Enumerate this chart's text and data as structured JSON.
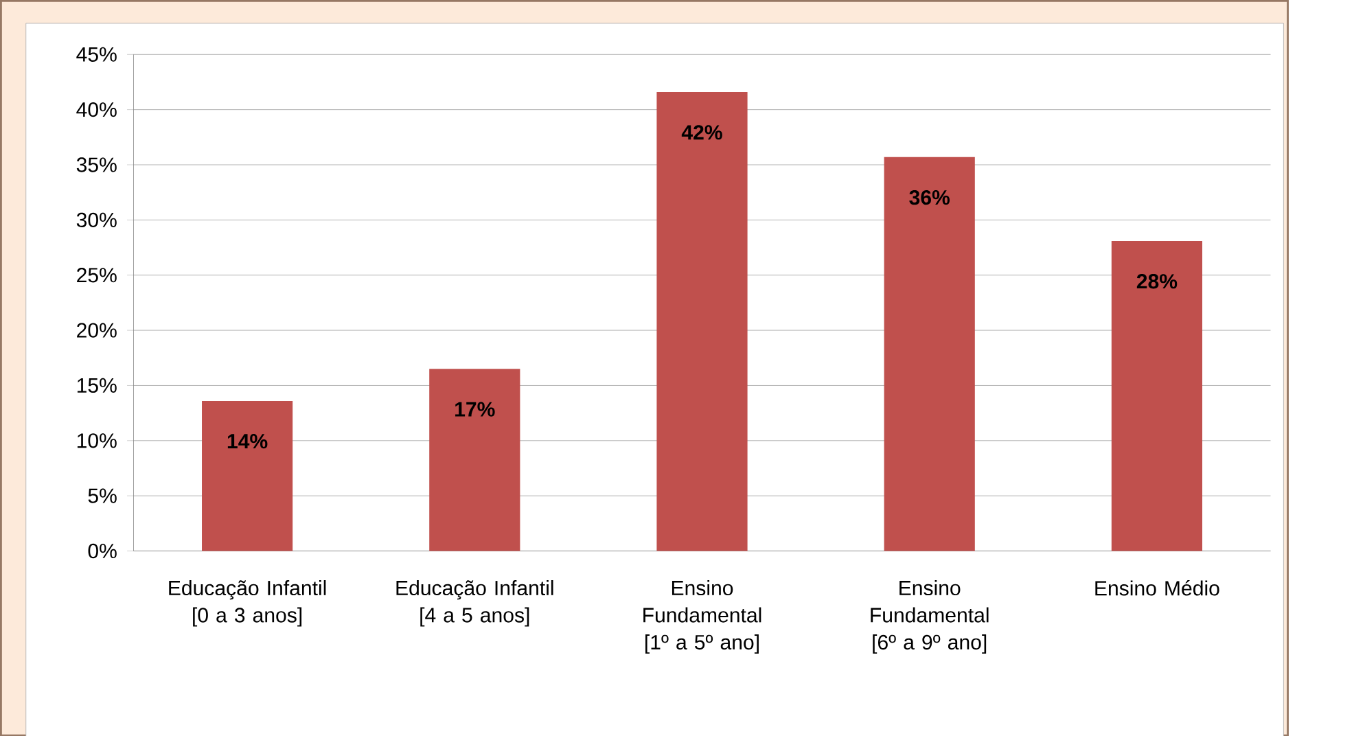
{
  "chart_data": {
    "type": "bar",
    "categories": [
      "Educação Infantil [0 a 3 anos]",
      "Educação Infantil [4 a 5 anos]",
      "Ensino Fundamental [1º a 5º ano]",
      "Ensino Fundamental [6º a 9º ano]",
      "Ensino Médio"
    ],
    "values": [
      13.6,
      16.5,
      41.6,
      35.7,
      28.1
    ],
    "value_labels": [
      "14%",
      "17%",
      "42%",
      "36%",
      "28%"
    ],
    "color": "#c0504d",
    "ylim": [
      0,
      45
    ],
    "yticks": [
      {
        "value": 0,
        "label": "0%"
      },
      {
        "value": 5,
        "label": "5%"
      },
      {
        "value": 10,
        "label": "10%"
      },
      {
        "value": 15,
        "label": "15%"
      },
      {
        "value": 20,
        "label": "20%"
      },
      {
        "value": 25,
        "label": "25%"
      },
      {
        "value": 30,
        "label": "30%"
      },
      {
        "value": 35,
        "label": "35%"
      },
      {
        "value": 40,
        "label": "40%"
      },
      {
        "value": 45,
        "label": "45%"
      }
    ],
    "grid": "y"
  }
}
